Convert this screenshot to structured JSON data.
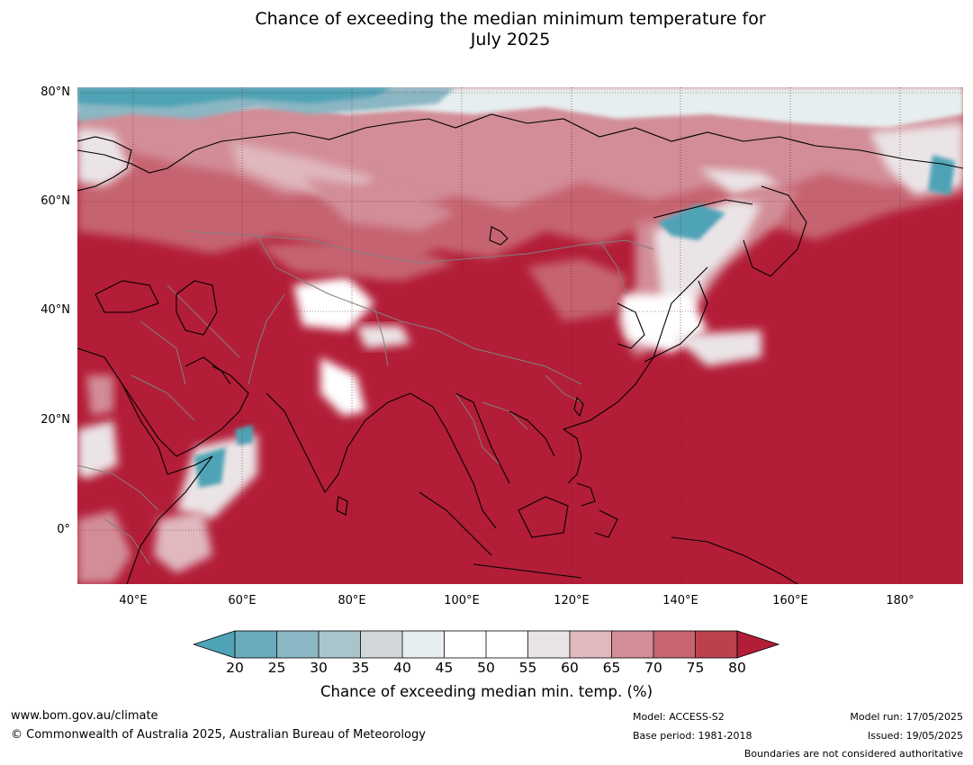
{
  "title": {
    "line1": "Chance of exceeding the median minimum temperature for",
    "line2": "July 2025"
  },
  "map": {
    "projection": "equirectangular",
    "region": "Asia, Indian Ocean and Western Pacific",
    "extent": {
      "lon": [
        30,
        191
      ],
      "lat": [
        -10,
        80
      ]
    },
    "lat_ticks": [
      "80°N",
      "60°N",
      "40°N",
      "20°N",
      "0°"
    ],
    "lon_ticks": [
      "40°E",
      "60°E",
      "80°E",
      "100°E",
      "120°E",
      "140°E",
      "160°E",
      "180°"
    ],
    "gridlines": true,
    "dominant_value_range": ">80",
    "coast_color": "#000000",
    "border_color": "#808080"
  },
  "colorbar": {
    "label": "Chance of exceeding median min. temp. (%)",
    "ticks": [
      "20",
      "25",
      "30",
      "35",
      "40",
      "45",
      "50",
      "55",
      "60",
      "65",
      "70",
      "75",
      "80"
    ],
    "colors": {
      "below_20": "#4fa3b6",
      "20_25": "#6aaabb",
      "25_30": "#8bb6c3",
      "30_35": "#a9c4ca",
      "35_40": "#d2d8da",
      "40_45": "#e6eeef",
      "45_50": "#ffffff",
      "50_55": "#ffffff",
      "55_60": "#ebe4e6",
      "60_65": "#e0b8be",
      "65_70": "#d28d97",
      "70_75": "#c6646f",
      "75_80": "#bb414f",
      "above_80": "#b31d38"
    }
  },
  "footer": {
    "url": "www.bom.gov.au/climate",
    "copyright": "© Commonwealth of Australia 2025, Australian Bureau of Meteorology",
    "model": "Model: ACCESS-S2",
    "base_period": "Base period: 1981-2018",
    "model_run": "Model run: 17/05/2025",
    "issued": "Issued: 19/05/2025",
    "disclaimer": "Boundaries are not considered authoritative"
  }
}
